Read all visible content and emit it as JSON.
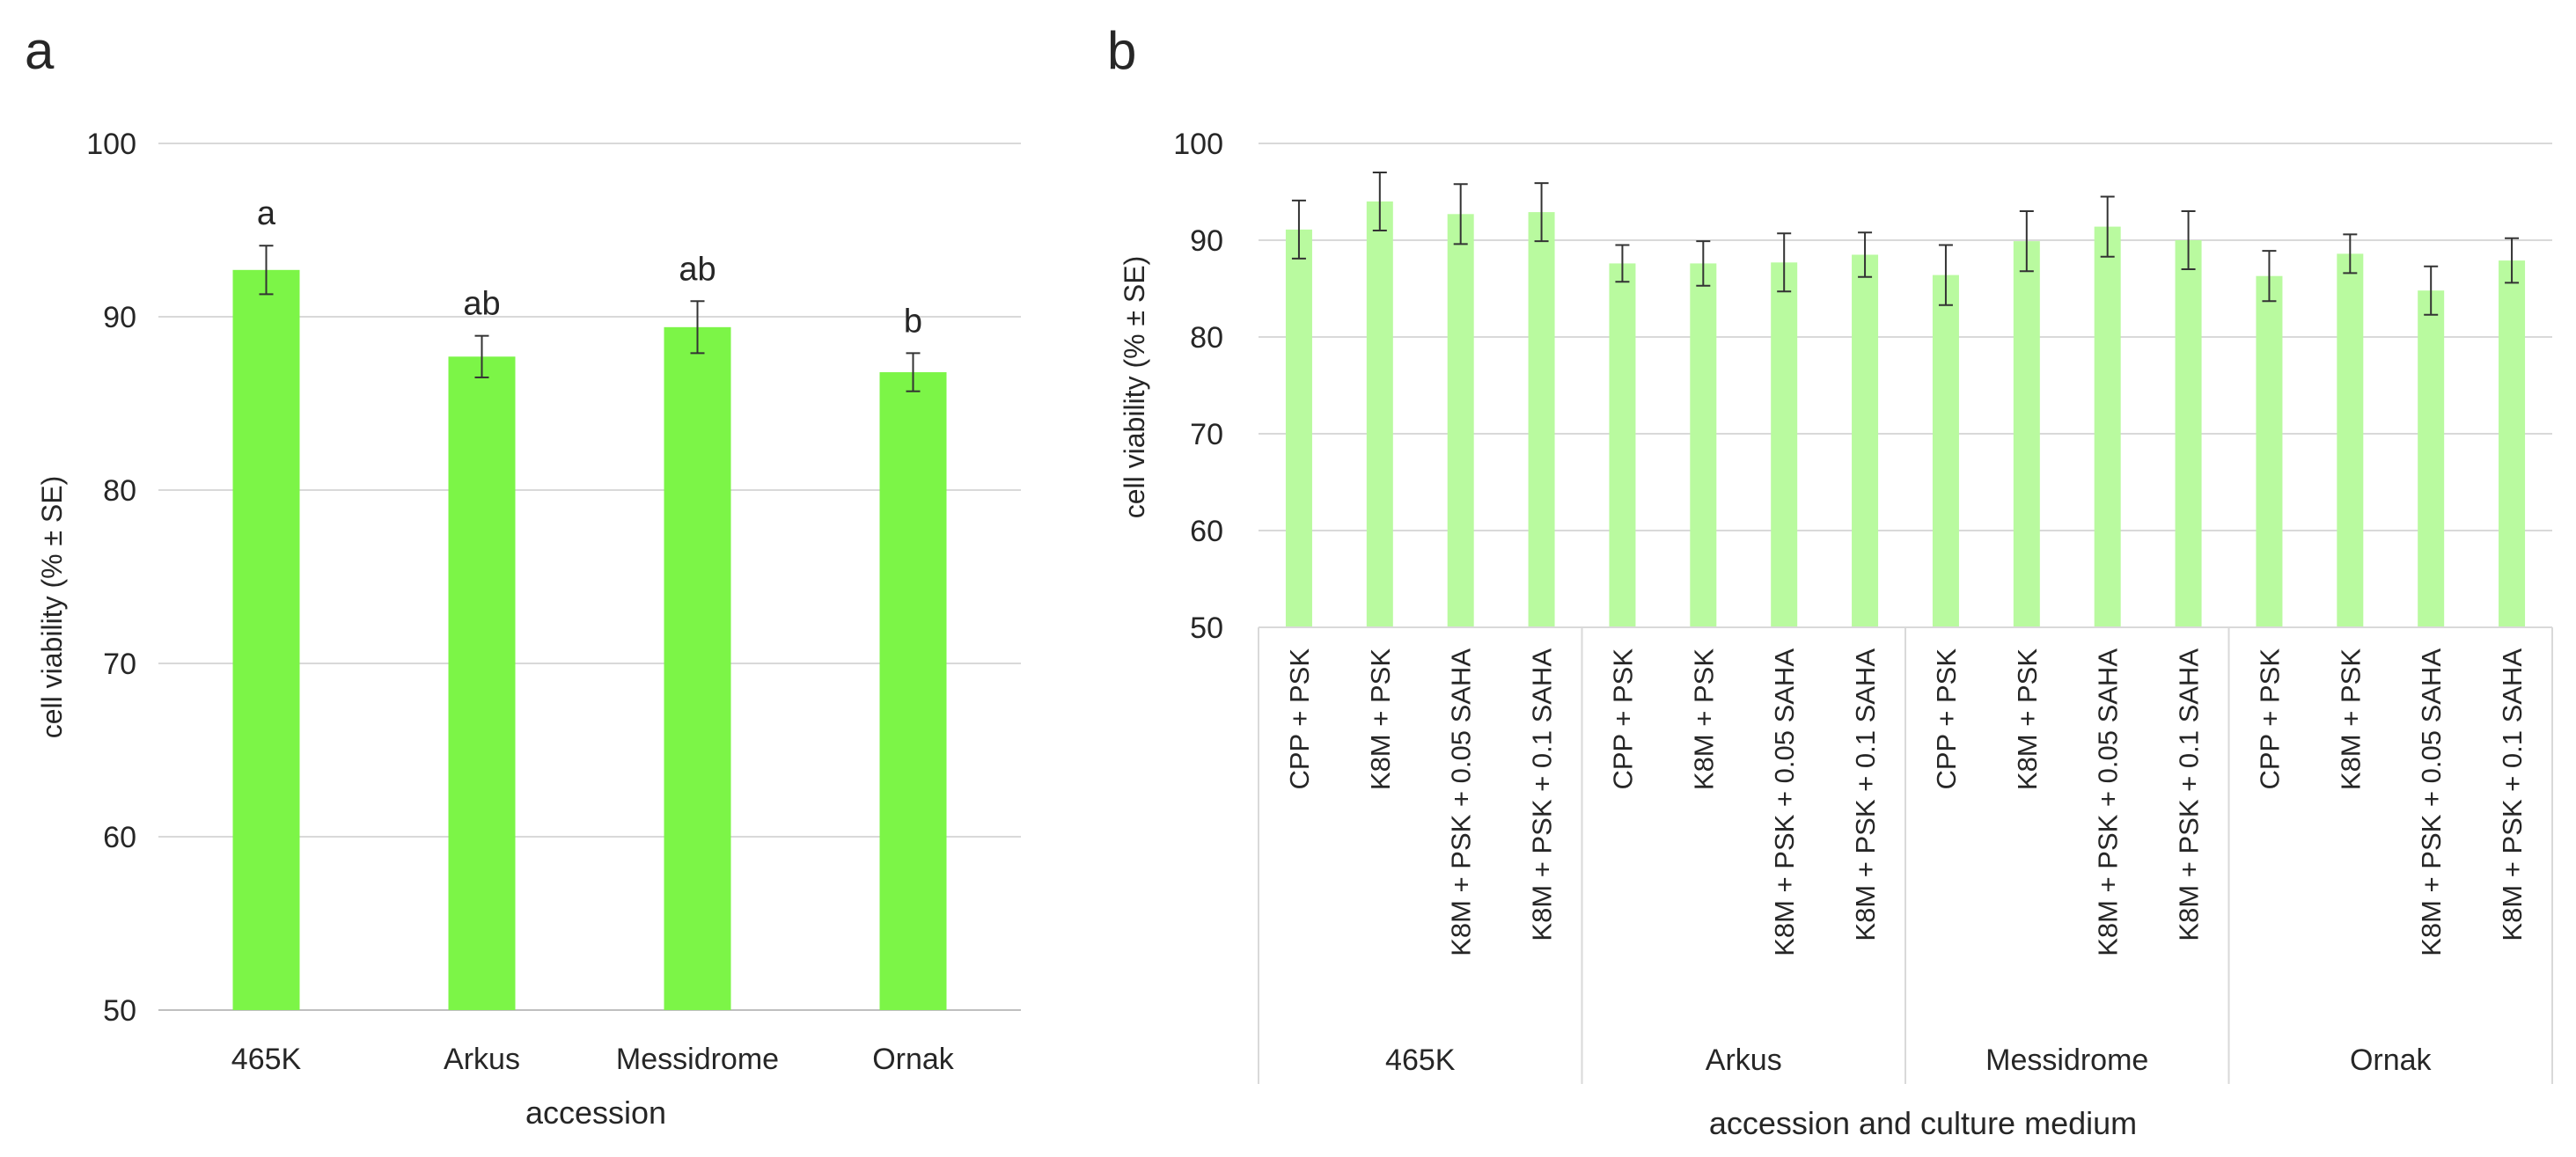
{
  "chart_data": [
    {
      "panel": "a",
      "type": "bar",
      "xlabel": "accession",
      "ylabel": "cell viability (% ± SE)",
      "ylim": [
        50,
        100
      ],
      "yticks": [
        50,
        60,
        70,
        80,
        90,
        100
      ],
      "categories": [
        "465K",
        "Arkus",
        "Messidrome",
        "Ornak"
      ],
      "values": [
        92.7,
        87.7,
        89.4,
        86.8
      ],
      "errors": [
        1.4,
        1.2,
        1.5,
        1.1
      ],
      "letters": [
        "a",
        "ab",
        "ab",
        "b"
      ],
      "bar_color": "#7cf547",
      "grid": true
    },
    {
      "panel": "b",
      "type": "bar",
      "xlabel": "accession and culture medium",
      "ylabel": "cell viability (% ± SE)",
      "ylim": [
        50,
        100
      ],
      "yticks": [
        50,
        60,
        70,
        80,
        90,
        100
      ],
      "groups": [
        {
          "name": "465K",
          "categories": [
            "CPP + PSK",
            "K8M + PSK",
            "K8M + PSK + 0.05 SAHA",
            "K8M + PSK + 0.1 SAHA"
          ],
          "values": [
            91.1,
            94.0,
            92.7,
            92.9
          ],
          "errors": [
            3.0,
            3.0,
            3.1,
            3.0
          ]
        },
        {
          "name": "Arkus",
          "categories": [
            "CPP + PSK",
            "K8M + PSK",
            "K8M + PSK + 0.05 SAHA",
            "K8M + PSK + 0.1 SAHA"
          ],
          "values": [
            87.6,
            87.6,
            87.7,
            88.5
          ],
          "errors": [
            1.9,
            2.3,
            3.0,
            2.3
          ]
        },
        {
          "name": "Messidrome",
          "categories": [
            "CPP + PSK",
            "K8M + PSK",
            "K8M + PSK + 0.05 SAHA",
            "K8M + PSK + 0.1 SAHA"
          ],
          "values": [
            86.4,
            89.9,
            91.4,
            90.0
          ],
          "errors": [
            3.1,
            3.1,
            3.1,
            3.0
          ]
        },
        {
          "name": "Ornak",
          "categories": [
            "CPP + PSK",
            "K8M + PSK",
            "K8M + PSK + 0.05 SAHA",
            "K8M + PSK + 0.1 SAHA"
          ],
          "values": [
            86.3,
            88.6,
            84.8,
            87.9
          ],
          "errors": [
            2.6,
            2.0,
            2.5,
            2.3
          ]
        }
      ],
      "bar_color": "#b9fa9f",
      "grid": true
    }
  ],
  "panel_labels": [
    "a",
    "b"
  ]
}
